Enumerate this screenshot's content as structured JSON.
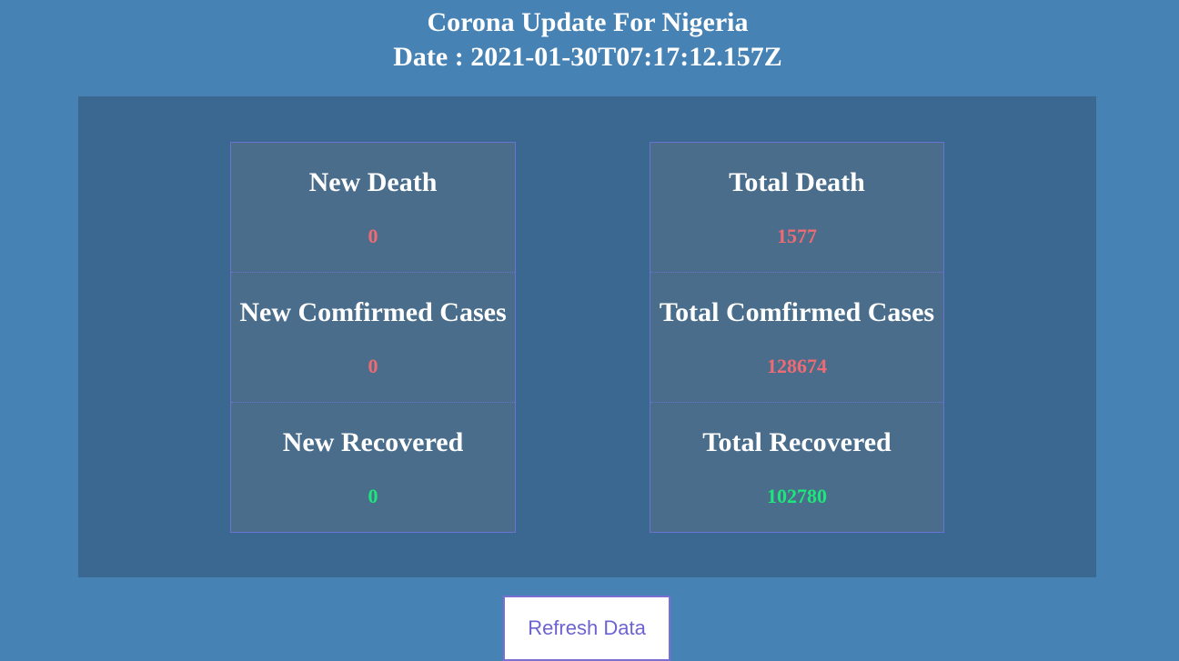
{
  "header": {
    "title": "Corona Update For Nigeria",
    "date_line": "Date : 2021-01-30T07:17:12.157Z"
  },
  "stats": {
    "new": [
      {
        "label": "New Death",
        "value": "0",
        "tone": "negative"
      },
      {
        "label": "New Comfirmed Cases",
        "value": "0",
        "tone": "negative"
      },
      {
        "label": "New Recovered",
        "value": "0",
        "tone": "positive"
      }
    ],
    "total": [
      {
        "label": "Total Death",
        "value": "1577",
        "tone": "negative"
      },
      {
        "label": "Total Comfirmed Cases",
        "value": "128674",
        "tone": "negative"
      },
      {
        "label": "Total Recovered",
        "value": "102780",
        "tone": "positive"
      }
    ]
  },
  "actions": {
    "refresh_label": "Refresh Data"
  },
  "colors": {
    "page_background": "#4682b4",
    "panel_background": "#3b6890",
    "card_background": "#4a6d8b",
    "negative": "#ef6b73",
    "positive": "#1ee67a",
    "button_text": "#6c63d3"
  }
}
